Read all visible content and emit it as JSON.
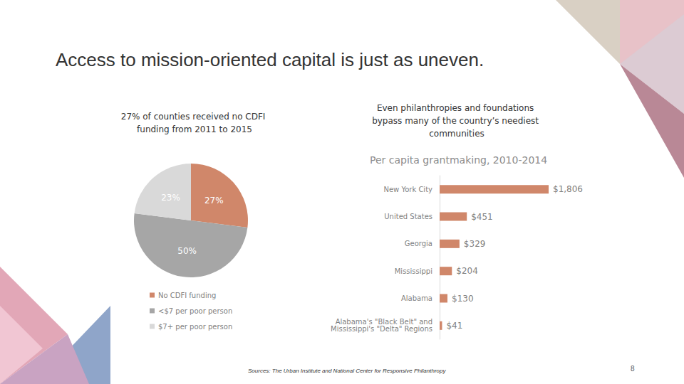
{
  "title": "Access to mission-oriented capital is just as uneven.",
  "sources": "Sources: The Urban Institute and National Center for Responsive Philanthropy",
  "page_number": 8,
  "chart_data": [
    {
      "type": "pie",
      "title": "27% of counties received no CDFI funding from 2011 to 2015",
      "categories": [
        "No CDFI funding",
        "<$7 per poor person",
        "$7+ per poor person"
      ],
      "values": [
        27,
        50,
        23
      ],
      "value_labels": [
        "27%",
        "50%",
        "23%"
      ],
      "colors": [
        "#d0876a",
        "#a6a6a6",
        "#d9d9d9"
      ],
      "data_labels": true,
      "legend": "bottom"
    },
    {
      "type": "bar",
      "orientation": "horizontal",
      "subtitle": "Even philanthropies and foundations bypass many of the country’s neediest communities",
      "title": "Per capita grantmaking, 2010-2014",
      "categories": [
        "New York City",
        "United States",
        "Georgia",
        "Mississippi",
        "Alabama",
        "Alabama's \"Black Belt\" and\nMississippi's \"Delta\" Regions"
      ],
      "values": [
        1806,
        451,
        329,
        204,
        130,
        41
      ],
      "value_labels": [
        "$1,806",
        "$451",
        "$329",
        "$204",
        "$130",
        "$41"
      ],
      "color": "#d0876a",
      "xlim": [
        0,
        1806
      ],
      "data_labels": true,
      "tick_labels": "y",
      "grid": false
    }
  ]
}
